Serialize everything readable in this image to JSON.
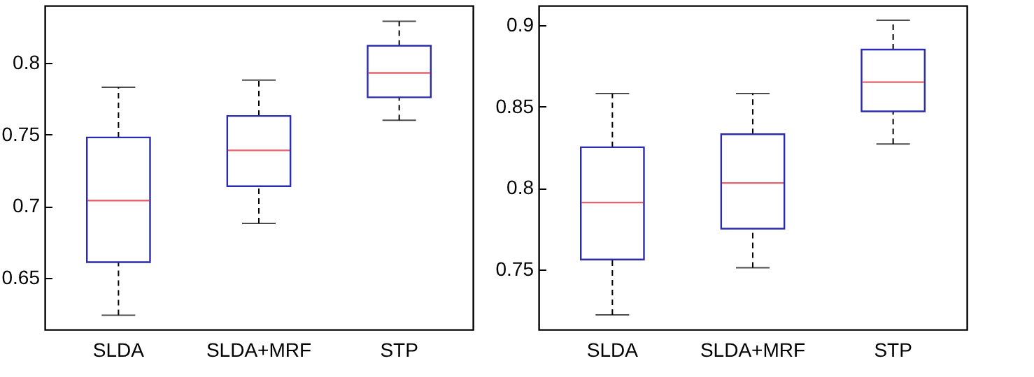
{
  "chart_data": [
    {
      "type": "box",
      "categories": [
        "SLDA",
        "SLDA+MRF",
        "STP"
      ],
      "ylim": [
        0.614,
        0.84
      ],
      "yticks": [
        0.65,
        0.7,
        0.75,
        0.8
      ],
      "series": [
        {
          "color": "#2b2bb0",
          "boxes": [
            {
              "low": 0.624,
              "q1": 0.661,
              "median": 0.704,
              "q3": 0.748,
              "high": 0.783
            },
            {
              "low": 0.688,
              "q1": 0.714,
              "median": 0.739,
              "q3": 0.763,
              "high": 0.788
            },
            {
              "low": 0.76,
              "q1": 0.776,
              "median": 0.793,
              "q3": 0.812,
              "high": 0.829
            }
          ]
        }
      ]
    },
    {
      "type": "box",
      "categories": [
        "SLDA",
        "SLDA+MRF",
        "STP"
      ],
      "ylim": [
        0.713,
        0.912
      ],
      "yticks": [
        0.75,
        0.8,
        0.85,
        0.9
      ],
      "series": [
        {
          "color": "#2b2bb0",
          "boxes": [
            {
              "low": 0.722,
              "q1": 0.756,
              "median": 0.791,
              "q3": 0.825,
              "high": 0.858
            },
            {
              "low": 0.751,
              "q1": 0.775,
              "median": 0.803,
              "q3": 0.833,
              "high": 0.858
            },
            {
              "low": 0.827,
              "q1": 0.847,
              "median": 0.865,
              "q3": 0.885,
              "high": 0.903
            }
          ]
        }
      ]
    }
  ]
}
